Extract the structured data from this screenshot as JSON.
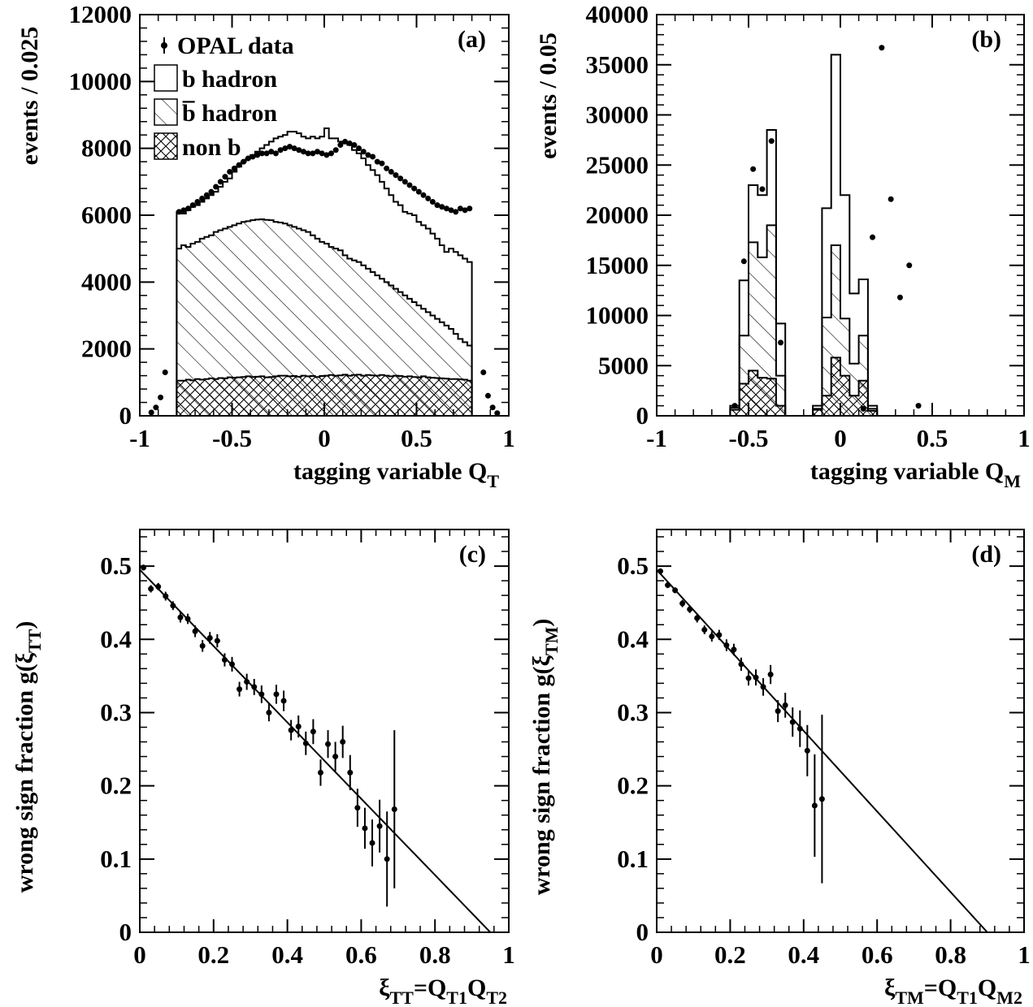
{
  "chart_data": [
    {
      "id": "a",
      "type": "bar",
      "panel_label": "(a)",
      "xlabel": "tagging variable Q",
      "xlabel_sub": "T",
      "ylabel": "events / 0.025",
      "xlim": [
        -1,
        1
      ],
      "ylim": [
        0,
        12000
      ],
      "xticks": [
        "-1",
        "-0.5",
        "0",
        "0.5",
        "1"
      ],
      "yticks": [
        "0",
        "2000",
        "4000",
        "6000",
        "8000",
        "10000",
        "12000"
      ],
      "bin_width": 0.025,
      "bin_edges_start": -0.8,
      "legend": {
        "position": "top-left",
        "entries": [
          {
            "label": "OPAL data",
            "style": "marker"
          },
          {
            "label": "b hadron",
            "style": "open"
          },
          {
            "label": "b̅ hadron",
            "style": "hatched"
          },
          {
            "label": "non b",
            "style": "cross-hatched"
          }
        ]
      },
      "series": [
        {
          "name": "b hadron",
          "kind": "total_stack",
          "values": [
            6100,
            6050,
            6150,
            6250,
            6300,
            6400,
            6500,
            6600,
            6700,
            6850,
            7000,
            7100,
            7300,
            7450,
            7600,
            7700,
            7800,
            7900,
            8000,
            8100,
            8200,
            8300,
            8350,
            8400,
            8500,
            8500,
            8450,
            8350,
            8300,
            8350,
            8300,
            8350,
            8600,
            8300,
            8300,
            8200,
            8150,
            8100,
            7950,
            7850,
            7700,
            7500,
            7350,
            7200,
            7000,
            6800,
            6600,
            6400,
            6300,
            6100,
            6050,
            6000,
            5800,
            5700,
            5600,
            5450,
            5300,
            5100,
            4900,
            5000,
            4900,
            4800,
            4700,
            4600
          ]
        },
        {
          "name": "b̅ hadron",
          "kind": "stack",
          "values": [
            5000,
            5100,
            5050,
            5150,
            5200,
            5300,
            5350,
            5400,
            5500,
            5550,
            5600,
            5650,
            5700,
            5750,
            5800,
            5820,
            5850,
            5870,
            5880,
            5860,
            5850,
            5800,
            5780,
            5750,
            5700,
            5650,
            5600,
            5550,
            5500,
            5400,
            5300,
            5200,
            5150,
            5050,
            5000,
            4950,
            4800,
            4700,
            4650,
            4600,
            4500,
            4400,
            4300,
            4200,
            4100,
            4000,
            3900,
            3800,
            3700,
            3600,
            3500,
            3400,
            3300,
            3200,
            3100,
            3000,
            2900,
            2800,
            2700,
            2600,
            2450,
            2300,
            2200,
            2100
          ]
        },
        {
          "name": "non b",
          "kind": "stack",
          "values": [
            1050,
            1050,
            1080,
            1060,
            1100,
            1080,
            1100,
            1120,
            1100,
            1130,
            1120,
            1150,
            1140,
            1150,
            1160,
            1180,
            1160,
            1170,
            1180,
            1150,
            1160,
            1180,
            1200,
            1200,
            1180,
            1190,
            1170,
            1200,
            1180,
            1190,
            1160,
            1190,
            1200,
            1220,
            1200,
            1210,
            1230,
            1200,
            1220,
            1230,
            1200,
            1220,
            1210,
            1200,
            1220,
            1200,
            1180,
            1200,
            1190,
            1170,
            1180,
            1160,
            1150,
            1180,
            1150,
            1140,
            1130,
            1120,
            1110,
            1100,
            1100,
            1090,
            1080,
            1050
          ]
        },
        {
          "name": "OPAL data",
          "kind": "points",
          "x": [
            -0.9375,
            -0.9125,
            -0.8875,
            -0.8625,
            -0.7875,
            -0.7625,
            -0.7375,
            -0.7125,
            -0.6875,
            -0.6625,
            -0.6375,
            -0.6125,
            -0.5875,
            -0.5625,
            -0.5375,
            -0.5125,
            -0.4875,
            -0.4625,
            -0.4375,
            -0.4125,
            -0.3875,
            -0.3625,
            -0.3375,
            -0.3125,
            -0.2875,
            -0.2625,
            -0.2375,
            -0.2125,
            -0.1875,
            -0.1625,
            -0.1375,
            -0.1125,
            -0.0875,
            -0.0625,
            -0.0375,
            -0.0125,
            0.0125,
            0.0375,
            0.0625,
            0.0875,
            0.1125,
            0.1375,
            0.1625,
            0.1875,
            0.2125,
            0.2375,
            0.2625,
            0.2875,
            0.3125,
            0.3375,
            0.3625,
            0.3875,
            0.4125,
            0.4375,
            0.4625,
            0.4875,
            0.5125,
            0.5375,
            0.5625,
            0.5875,
            0.6125,
            0.6375,
            0.6625,
            0.6875,
            0.7125,
            0.7375,
            0.7625,
            0.7875,
            0.8625,
            0.8875,
            0.9125,
            0.9375
          ],
          "y": [
            100,
            250,
            550,
            1300,
            6100,
            6150,
            6200,
            6300,
            6400,
            6500,
            6600,
            6700,
            6850,
            7000,
            7150,
            7300,
            7400,
            7500,
            7600,
            7700,
            7750,
            7800,
            7850,
            7850,
            7900,
            7850,
            7950,
            8000,
            8050,
            8000,
            7950,
            7900,
            7850,
            7850,
            7900,
            7850,
            7800,
            7850,
            7950,
            8100,
            8200,
            8150,
            8100,
            8000,
            7900,
            7800,
            7750,
            7600,
            7550,
            7400,
            7300,
            7200,
            7100,
            7000,
            6900,
            6800,
            6700,
            6600,
            6500,
            6400,
            6300,
            6250,
            6200,
            6150,
            6100,
            6200,
            6150,
            6200,
            1300,
            600,
            250,
            80
          ]
        }
      ]
    },
    {
      "id": "b",
      "type": "bar",
      "panel_label": "(b)",
      "xlabel": "tagging variable Q",
      "xlabel_sub": "M",
      "ylabel": "events / 0.05",
      "xlim": [
        -1,
        1
      ],
      "ylim": [
        0,
        40000
      ],
      "xticks": [
        "-1",
        "-0.5",
        "0",
        "0.5",
        "1"
      ],
      "yticks": [
        "0",
        "5000",
        "10000",
        "15000",
        "20000",
        "25000",
        "30000",
        "35000",
        "40000"
      ],
      "bin_width": 0.05,
      "bins": [
        -0.6,
        -0.55,
        -0.5,
        -0.45,
        -0.4,
        -0.35,
        -0.3,
        -0.25,
        -0.2,
        0.1,
        0.15,
        0.2,
        0.25,
        0.3,
        0.35,
        0.4,
        0.45,
        0.5,
        0.55
      ],
      "series": [
        {
          "name": "b hadron",
          "kind": "total_stack",
          "values": [
            1000,
            13500,
            23000,
            22000,
            28500,
            9200,
            0,
            0,
            0,
            1000,
            20700,
            36000,
            22000,
            12200,
            13600,
            1000,
            0,
            0,
            0
          ]
        },
        {
          "name": "b̅ hadron",
          "kind": "stack",
          "values": [
            800,
            8000,
            17300,
            15800,
            19000,
            4000,
            0,
            0,
            0,
            700,
            9800,
            17000,
            9700,
            5200,
            8000,
            700,
            0,
            0,
            0
          ]
        },
        {
          "name": "non b",
          "kind": "stack",
          "values": [
            600,
            3200,
            4500,
            3800,
            3700,
            1000,
            0,
            0,
            0,
            600,
            2000,
            5800,
            4000,
            2000,
            3500,
            500,
            0,
            0,
            0
          ]
        },
        {
          "name": "OPAL data",
          "kind": "points",
          "x": [
            -0.575,
            -0.525,
            -0.475,
            -0.425,
            -0.375,
            -0.325,
            -0.275,
            -0.225,
            0.125,
            0.175,
            0.225,
            0.275,
            0.325,
            0.375,
            0.425,
            0.475,
            0.525,
            0.575
          ],
          "y": [
            1000,
            15400,
            24600,
            22600,
            27400,
            7300,
            0,
            0,
            700,
            17800,
            36700,
            21600,
            11800,
            15000,
            1000,
            0,
            0,
            0
          ],
          "xerr": 0.025
        }
      ]
    },
    {
      "id": "c",
      "type": "scatter",
      "panel_label": "(c)",
      "xlabel": "ξ",
      "xlabel_sub": "TT",
      "xlabel_rest": "=Q",
      "xlabel_sub2": "T1",
      "xlabel_rest2": "Q",
      "xlabel_sub3": "T2",
      "ylabel": "wrong sign fraction g(ξ",
      "ylabel_sub": "TT",
      "ylabel_rest": ")",
      "xlim": [
        0,
        1
      ],
      "ylim": [
        0,
        0.55
      ],
      "xticks": [
        "0",
        "0.2",
        "0.4",
        "0.6",
        "0.8",
        "1"
      ],
      "yticks": [
        "0",
        "0.1",
        "0.2",
        "0.3",
        "0.4",
        "0.5"
      ],
      "fit_line": {
        "x": [
          0,
          0.95
        ],
        "y": [
          0.495,
          0
        ]
      },
      "series": [
        {
          "name": "",
          "x": [
            0.01,
            0.03,
            0.05,
            0.07,
            0.09,
            0.11,
            0.13,
            0.15,
            0.17,
            0.19,
            0.21,
            0.23,
            0.25,
            0.27,
            0.29,
            0.31,
            0.33,
            0.35,
            0.37,
            0.39,
            0.41,
            0.43,
            0.45,
            0.47,
            0.49,
            0.51,
            0.53,
            0.55,
            0.57,
            0.59,
            0.61,
            0.63,
            0.65,
            0.67,
            0.69
          ],
          "y": [
            0.498,
            0.469,
            0.472,
            0.459,
            0.446,
            0.43,
            0.428,
            0.411,
            0.391,
            0.402,
            0.398,
            0.372,
            0.366,
            0.332,
            0.342,
            0.335,
            0.325,
            0.3,
            0.325,
            0.316,
            0.276,
            0.281,
            0.258,
            0.274,
            0.218,
            0.257,
            0.24,
            0.26,
            0.218,
            0.17,
            0.142,
            0.122,
            0.145,
            0.1,
            0.168
          ],
          "yerr": [
            0.004,
            0.005,
            0.005,
            0.006,
            0.006,
            0.007,
            0.007,
            0.008,
            0.008,
            0.008,
            0.009,
            0.009,
            0.01,
            0.01,
            0.011,
            0.011,
            0.012,
            0.012,
            0.013,
            0.014,
            0.014,
            0.015,
            0.016,
            0.017,
            0.018,
            0.019,
            0.02,
            0.022,
            0.024,
            0.026,
            0.028,
            0.032,
            0.036,
            0.065,
            0.108
          ]
        }
      ]
    },
    {
      "id": "d",
      "type": "scatter",
      "panel_label": "(d)",
      "xlabel": "ξ",
      "xlabel_sub": "TM",
      "xlabel_rest": "=Q",
      "xlabel_sub2": "T1",
      "xlabel_rest2": "Q",
      "xlabel_sub3": "M2",
      "ylabel": "wrong sign fraction g(ξ",
      "ylabel_sub": "TM",
      "ylabel_rest": ")",
      "xlim": [
        0,
        1
      ],
      "ylim": [
        0,
        0.55
      ],
      "xticks": [
        "0",
        "0.2",
        "0.4",
        "0.6",
        "0.8",
        "1"
      ],
      "yticks": [
        "0",
        "0.1",
        "0.2",
        "0.3",
        "0.4",
        "0.5"
      ],
      "fit_line": {
        "x": [
          0,
          0.9
        ],
        "y": [
          0.495,
          0
        ]
      },
      "series": [
        {
          "name": "",
          "x": [
            0.01,
            0.03,
            0.05,
            0.07,
            0.09,
            0.11,
            0.13,
            0.15,
            0.17,
            0.19,
            0.21,
            0.23,
            0.25,
            0.27,
            0.29,
            0.31,
            0.33,
            0.35,
            0.37,
            0.39,
            0.41,
            0.43,
            0.45
          ],
          "y": [
            0.493,
            0.474,
            0.467,
            0.449,
            0.441,
            0.429,
            0.413,
            0.404,
            0.406,
            0.392,
            0.386,
            0.366,
            0.347,
            0.348,
            0.335,
            0.352,
            0.302,
            0.31,
            0.287,
            0.278,
            0.248,
            0.173,
            0.182
          ],
          "yerr": [
            0.003,
            0.004,
            0.004,
            0.005,
            0.005,
            0.006,
            0.006,
            0.007,
            0.007,
            0.008,
            0.008,
            0.009,
            0.01,
            0.011,
            0.012,
            0.013,
            0.015,
            0.017,
            0.02,
            0.025,
            0.035,
            0.07,
            0.115
          ]
        }
      ]
    }
  ]
}
